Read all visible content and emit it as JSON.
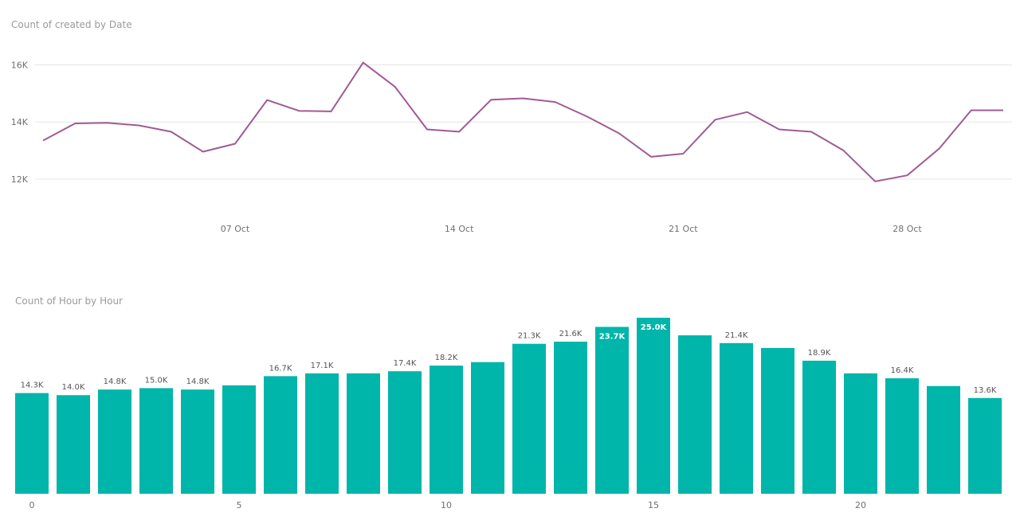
{
  "chart_data": [
    {
      "type": "line",
      "title": "Count of created by Date",
      "xlabel": "",
      "ylabel": "",
      "x_tick_labels": [
        "07 Oct",
        "14 Oct",
        "21 Oct",
        "28 Oct"
      ],
      "y_tick_labels": [
        "16K",
        "14K",
        "12K"
      ],
      "ylim": [
        11300,
        16600
      ],
      "grid": true,
      "line_color": "#a05a96",
      "series": [
        {
          "x": [
            "2018-10-01",
            "2018-10-02",
            "2018-10-03",
            "2018-10-04",
            "2018-10-05",
            "2018-10-06",
            "2018-10-07",
            "2018-10-08",
            "2018-10-09",
            "2018-10-10",
            "2018-10-11",
            "2018-10-12",
            "2018-10-13",
            "2018-10-14",
            "2018-10-15",
            "2018-10-16",
            "2018-10-17",
            "2018-10-18",
            "2018-10-19",
            "2018-10-20",
            "2018-10-21",
            "2018-10-22",
            "2018-10-23",
            "2018-10-24",
            "2018-10-25",
            "2018-10-26",
            "2018-10-27",
            "2018-10-28",
            "2018-10-29",
            "2018-10-30",
            "2018-10-31"
          ],
          "values": [
            13350,
            13950,
            13970,
            13880,
            13660,
            12960,
            13240,
            14770,
            14390,
            14370,
            16080,
            15230,
            13740,
            13660,
            14780,
            14830,
            14700,
            14190,
            13600,
            12780,
            12890,
            14080,
            14350,
            13740,
            13660,
            13010,
            11920,
            12130,
            13070,
            14410,
            14410
          ]
        }
      ]
    },
    {
      "type": "bar",
      "title": "Count of Hour by Hour",
      "xlabel": "",
      "ylabel": "",
      "x_tick_labels": [
        "0",
        "5",
        "10",
        "15",
        "20"
      ],
      "ylim": [
        0,
        25000
      ],
      "bar_color": "#00b5a9",
      "categories": [
        0,
        1,
        2,
        3,
        4,
        5,
        6,
        7,
        8,
        9,
        10,
        11,
        12,
        13,
        14,
        15,
        16,
        17,
        18,
        19,
        20,
        21,
        22,
        23
      ],
      "values": [
        14300,
        14000,
        14800,
        15000,
        14800,
        15400,
        16700,
        17100,
        17100,
        17400,
        18200,
        18700,
        21300,
        21600,
        23700,
        25000,
        22500,
        21400,
        20700,
        18900,
        17100,
        16400,
        15300,
        13600
      ],
      "data_labels": [
        "14.3K",
        "14.0K",
        "14.8K",
        "15.0K",
        "14.8K",
        "",
        "16.7K",
        "17.1K",
        "",
        "17.4K",
        "18.2K",
        "",
        "21.3K",
        "21.6K",
        "23.7K",
        "25.0K",
        "",
        "21.4K",
        "",
        "18.9K",
        "",
        "16.4K",
        "",
        "13.6K"
      ]
    }
  ]
}
